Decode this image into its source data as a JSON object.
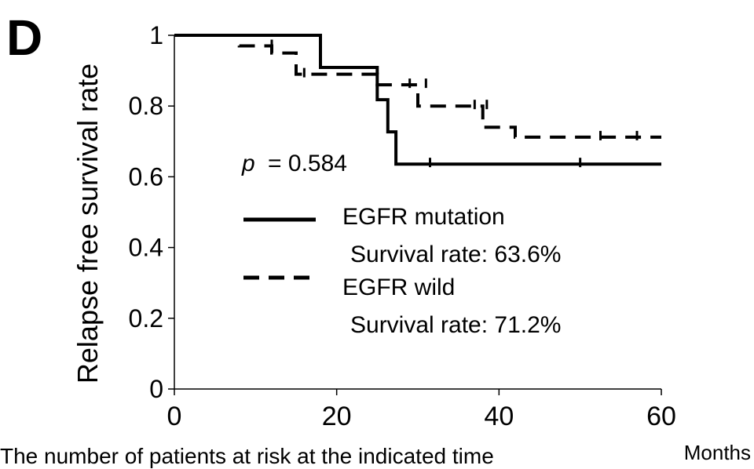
{
  "panel_label": "D",
  "chart_data": {
    "type": "line",
    "ylabel": "Relapse free  survival rate",
    "xlabel": "Months",
    "xlim": [
      0,
      60
    ],
    "ylim": [
      0,
      1
    ],
    "x_ticks": [
      0,
      20,
      40,
      60
    ],
    "y_ticks": [
      0,
      0.2,
      0.4,
      0.6,
      0.8,
      1
    ],
    "y_tick_labels": [
      "0",
      "0.2",
      "0.4",
      "0.6",
      "0.8",
      "1"
    ],
    "grid": false,
    "annotation": {
      "p_symbol": "p",
      "p_text": "= 0.584"
    },
    "subtitle_below": "The number of patients at risk at the indicated time",
    "legend_position": "center",
    "series": [
      {
        "name": "EGFR mutation",
        "note": "Survival rate: 63.6%",
        "style": "solid",
        "color": "#000000",
        "steps": [
          [
            0,
            1.0
          ],
          [
            18,
            1.0
          ],
          [
            18,
            0.909
          ],
          [
            25,
            0.909
          ],
          [
            25,
            0.818
          ],
          [
            26.3,
            0.818
          ],
          [
            26.3,
            0.727
          ],
          [
            27.3,
            0.727
          ],
          [
            27.3,
            0.636
          ],
          [
            60,
            0.636
          ]
        ],
        "censor": [
          [
            31.5,
            0.636
          ],
          [
            50,
            0.636
          ]
        ]
      },
      {
        "name": "EGFR wild",
        "note": "Survival rate: 71.2%",
        "style": "dashed",
        "color": "#000000",
        "steps": [
          [
            0,
            1.0
          ],
          [
            8,
            1.0
          ],
          [
            8,
            0.97
          ],
          [
            12,
            0.97
          ],
          [
            12,
            0.95
          ],
          [
            15,
            0.95
          ],
          [
            15,
            0.89
          ],
          [
            25,
            0.89
          ],
          [
            25,
            0.86
          ],
          [
            30,
            0.86
          ],
          [
            30,
            0.8
          ],
          [
            38,
            0.8
          ],
          [
            38,
            0.74
          ],
          [
            42,
            0.74
          ],
          [
            42,
            0.712
          ],
          [
            60,
            0.712
          ]
        ],
        "censor": [
          [
            12,
            0.97
          ],
          [
            16,
            0.89
          ],
          [
            29,
            0.86
          ],
          [
            31,
            0.86
          ],
          [
            37,
            0.8
          ],
          [
            38.5,
            0.8
          ],
          [
            52.5,
            0.712
          ],
          [
            57,
            0.712
          ]
        ]
      }
    ]
  }
}
